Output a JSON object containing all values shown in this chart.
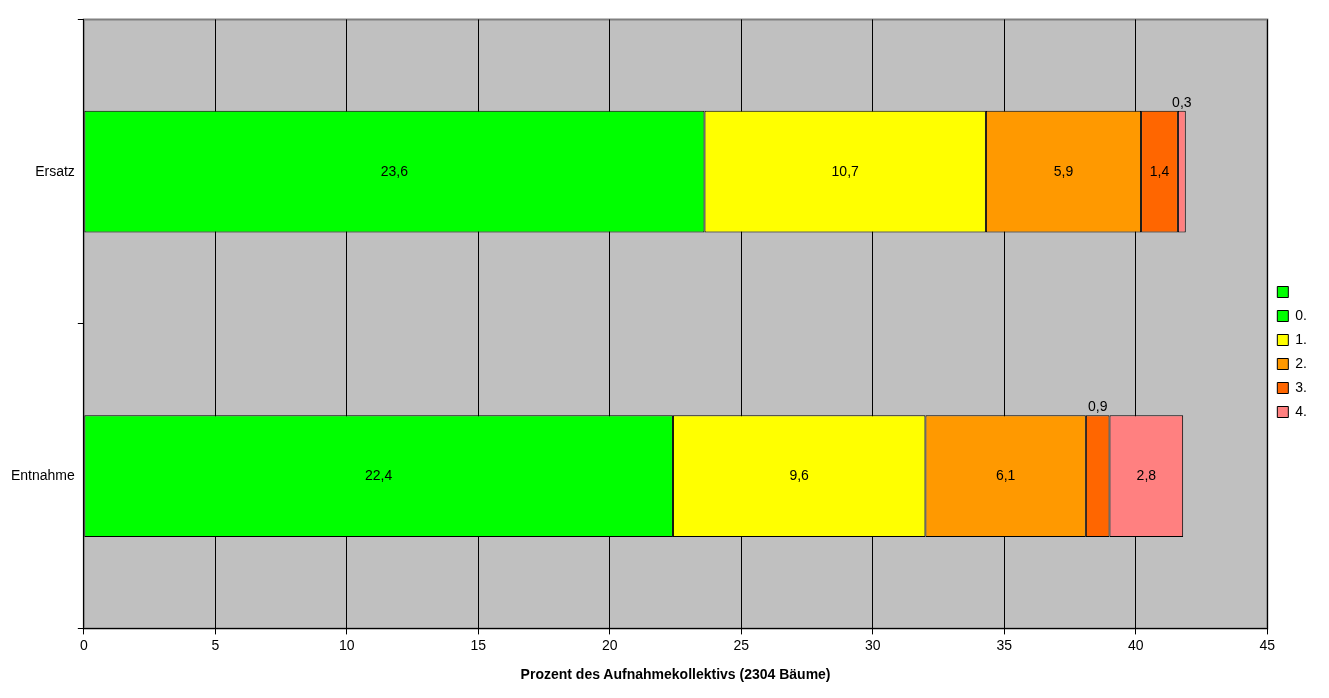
{
  "chart_data": {
    "type": "bar",
    "orientation": "horizontal",
    "stacked": true,
    "xlabel": "Prozent des Aufnahmekollektivs (2304 Bäume)",
    "categories": [
      "Ersatz",
      "Entnahme"
    ],
    "series": [
      {
        "color": "#00ff00",
        "values": [
          null,
          null
        ]
      },
      {
        "name": "0.",
        "color": "#00ff00",
        "values": [
          23.6,
          22.4
        ],
        "value_labels": [
          "23,6",
          "22,4"
        ]
      },
      {
        "name": "1.",
        "color": "#ffff00",
        "values": [
          10.7,
          9.6
        ],
        "value_labels": [
          "10,7",
          "9,6"
        ]
      },
      {
        "name": "2.",
        "color": "#ff9900",
        "values": [
          5.9,
          6.1
        ],
        "value_labels": [
          "5,9",
          "6,1"
        ]
      },
      {
        "name": "3.",
        "color": "#ff6600",
        "values": [
          1.4,
          0.9
        ],
        "value_labels": [
          "1,4",
          "0,9"
        ]
      },
      {
        "name": "4.",
        "color": "#ff8080",
        "values": [
          0.3,
          2.8
        ],
        "value_labels": [
          "0,3",
          "2,8"
        ]
      }
    ],
    "xlim": [
      0,
      45
    ],
    "xticks": [
      0,
      5,
      10,
      15,
      20,
      25,
      30,
      35,
      40,
      45
    ],
    "grid": "x",
    "legend": "right"
  }
}
